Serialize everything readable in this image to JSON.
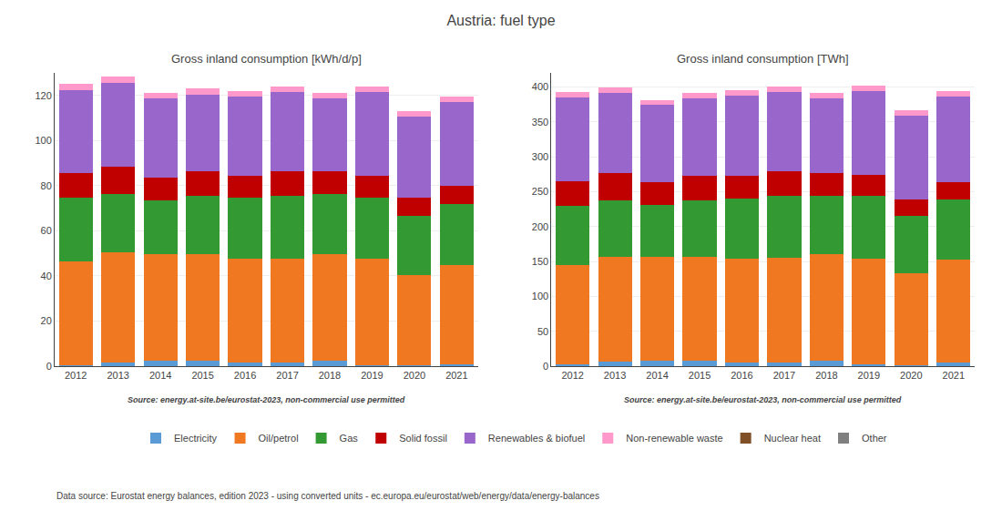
{
  "title": "Austria: fuel type",
  "annotations": [
    "Data source: Eurostat energy balances, edition 2023 - using converted units - ec.europa.eu/eurostat/web/energy/data/energy-balances"
  ],
  "chart_data": [
    {
      "type": "bar",
      "stacked": true,
      "grid": true,
      "legend": "bottom",
      "title": "Gross inland consumption [kWh/d/p]",
      "annotations": [
        "Source: energy.at-site.be/eurostat-2023, non-commercial use permitted"
      ],
      "categories": [
        "2012",
        "2013",
        "2014",
        "2015",
        "2016",
        "2017",
        "2018",
        "2019",
        "2020",
        "2021"
      ],
      "ylim": [
        0,
        130
      ],
      "yticks": [
        0,
        20,
        40,
        60,
        80,
        100,
        120
      ],
      "series": [
        {
          "name": "Electricity",
          "color": "#5b9bd5",
          "values": [
            0.5,
            1.5,
            2.5,
            2.5,
            1.5,
            1.5,
            2.5,
            0.5,
            0.5,
            1.0
          ]
        },
        {
          "name": "Oil/petrol",
          "color": "#f07820",
          "values": [
            46,
            49,
            47,
            47,
            46,
            46,
            47,
            47,
            40,
            44
          ]
        },
        {
          "name": "Gas",
          "color": "#339933",
          "values": [
            28,
            26,
            24,
            26,
            27,
            28,
            27,
            27,
            26,
            27
          ]
        },
        {
          "name": "Solid fossil",
          "color": "#c00000",
          "values": [
            11,
            12,
            10,
            11,
            10,
            11,
            10,
            10,
            8,
            8
          ]
        },
        {
          "name": "Renewables & biofuel",
          "color": "#9966cc",
          "values": [
            37,
            37,
            35,
            34,
            35,
            35,
            32,
            37,
            36,
            37
          ]
        },
        {
          "name": "Non-renewable waste",
          "color": "#ff99cc",
          "values": [
            2.5,
            3.0,
            2.5,
            2.5,
            2.5,
            2.5,
            2.5,
            2.5,
            2.5,
            2.5
          ]
        },
        {
          "name": "Nuclear heat",
          "color": "#7f4f28",
          "values": [
            0.0,
            0.0,
            0.0,
            0.0,
            0.0,
            0.0,
            0.0,
            0.0,
            0.0,
            0.0
          ]
        },
        {
          "name": "Other",
          "color": "#808080",
          "values": [
            0.0,
            0.0,
            0.0,
            0.0,
            0.0,
            0.0,
            0.0,
            0.0,
            0.0,
            0.0
          ]
        }
      ]
    },
    {
      "type": "bar",
      "stacked": true,
      "grid": true,
      "title": "Gross inland consumption [TWh]",
      "annotations": [
        "Source: energy.at-site.be/eurostat-2023, non-commercial use permitted"
      ],
      "categories": [
        "2012",
        "2013",
        "2014",
        "2015",
        "2016",
        "2017",
        "2018",
        "2019",
        "2020",
        "2021"
      ],
      "ylim": [
        0,
        420
      ],
      "yticks": [
        0,
        50,
        100,
        150,
        200,
        250,
        300,
        350,
        400
      ],
      "series": [
        {
          "name": "Electricity",
          "color": "#5b9bd5",
          "values": [
            2,
            6,
            8,
            8,
            5,
            5,
            8,
            2,
            1,
            5
          ]
        },
        {
          "name": "Oil/petrol",
          "color": "#f07820",
          "values": [
            143,
            150,
            148,
            149,
            149,
            150,
            152,
            152,
            132,
            147
          ]
        },
        {
          "name": "Gas",
          "color": "#339933",
          "values": [
            84,
            82,
            75,
            80,
            86,
            89,
            84,
            90,
            82,
            87
          ]
        },
        {
          "name": "Solid fossil",
          "color": "#c00000",
          "values": [
            36,
            38,
            33,
            35,
            33,
            35,
            32,
            30,
            24,
            25
          ]
        },
        {
          "name": "Renewables & biofuel",
          "color": "#9966cc",
          "values": [
            120,
            115,
            110,
            112,
            114,
            113,
            107,
            120,
            120,
            122
          ]
        },
        {
          "name": "Non-renewable waste",
          "color": "#ff99cc",
          "values": [
            8,
            8,
            7,
            7,
            8,
            9,
            8,
            8,
            7,
            8
          ]
        },
        {
          "name": "Nuclear heat",
          "color": "#7f4f28",
          "values": [
            0.0,
            0.0,
            0.0,
            0.0,
            0.0,
            0.0,
            0.0,
            0.0,
            0.0,
            0.0
          ]
        },
        {
          "name": "Other",
          "color": "#808080",
          "values": [
            0.0,
            0.0,
            0.0,
            0.0,
            0.0,
            0.0,
            0.0,
            0.0,
            0.0,
            0.0
          ]
        }
      ]
    }
  ]
}
